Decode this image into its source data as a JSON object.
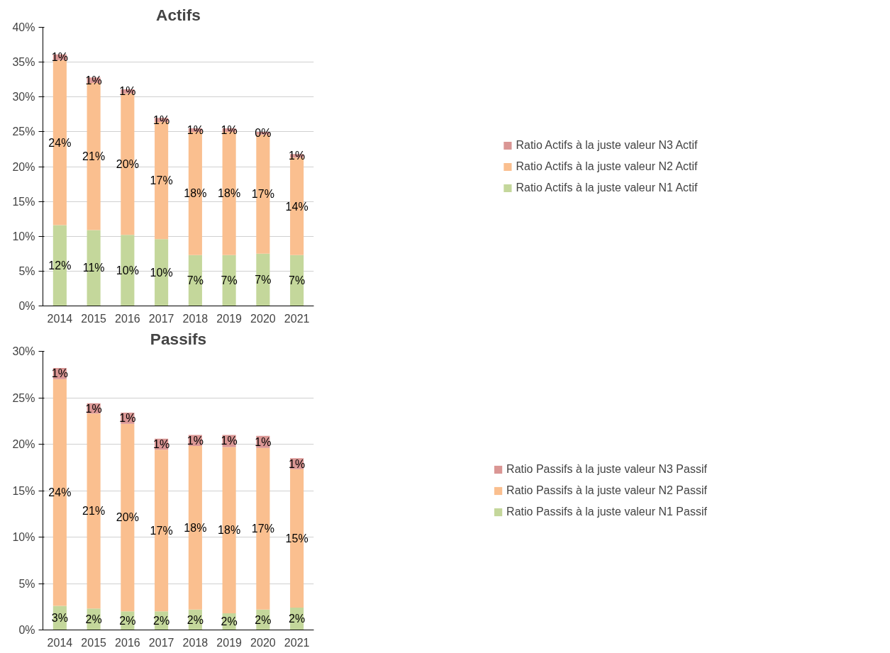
{
  "chart_data": [
    {
      "type": "bar",
      "title": "Actifs",
      "categories": [
        "2014",
        "2015",
        "2016",
        "2017",
        "2018",
        "2019",
        "2020",
        "2021"
      ],
      "stacked": true,
      "grid": "y",
      "legend": "right",
      "ylim": [
        0,
        40
      ],
      "yticks": [
        {
          "value": 0,
          "label": "0%"
        },
        {
          "value": 5,
          "label": "5%"
        },
        {
          "value": 10,
          "label": "10%"
        },
        {
          "value": 15,
          "label": "15%"
        },
        {
          "value": 20,
          "label": "20%"
        },
        {
          "value": 25,
          "label": "25%"
        },
        {
          "value": 30,
          "label": "30%"
        },
        {
          "value": 35,
          "label": "35%"
        },
        {
          "value": 40,
          "label": "40%"
        }
      ],
      "series": [
        {
          "name": "Ratio Actifs à la juste valeur N1 Actif",
          "color": "#c4d79b",
          "values": [
            11.6,
            10.9,
            10.2,
            9.6,
            7.3,
            7.3,
            7.5,
            7.3
          ],
          "value_labels": [
            "12%",
            "11%",
            "10%",
            "10%",
            "7%",
            "7%",
            "7%",
            "7%"
          ]
        },
        {
          "name": "Ratio Actifs à la juste valeur N2 Actif",
          "color": "#fabf8f",
          "values": [
            23.7,
            21.1,
            20.3,
            16.8,
            17.7,
            17.7,
            17.1,
            14.0
          ],
          "value_labels": [
            "24%",
            "21%",
            "20%",
            "17%",
            "18%",
            "18%",
            "17%",
            "14%"
          ]
        },
        {
          "name": "Ratio Actifs à la juste valeur N3 Actif",
          "color": "#da9694",
          "values": [
            0.8,
            0.8,
            0.6,
            0.6,
            0.5,
            0.5,
            0.4,
            0.5
          ],
          "value_labels": [
            "1%",
            "1%",
            "1%",
            "1%",
            "1%",
            "1%",
            "0%",
            "1%"
          ]
        }
      ]
    },
    {
      "type": "bar",
      "title": "Passifs",
      "categories": [
        "2014",
        "2015",
        "2016",
        "2017",
        "2018",
        "2019",
        "2020",
        "2021"
      ],
      "stacked": true,
      "grid": "y",
      "legend": "right",
      "ylim": [
        0,
        30
      ],
      "yticks": [
        {
          "value": 0,
          "label": "0%"
        },
        {
          "value": 5,
          "label": "5%"
        },
        {
          "value": 10,
          "label": "10%"
        },
        {
          "value": 15,
          "label": "15%"
        },
        {
          "value": 20,
          "label": "20%"
        },
        {
          "value": 25,
          "label": "25%"
        },
        {
          "value": 30,
          "label": "30%"
        }
      ],
      "series": [
        {
          "name": "Ratio Passifs à la juste valeur N1 Passif",
          "color": "#c4d79b",
          "values": [
            2.6,
            2.3,
            2.0,
            2.0,
            2.2,
            1.8,
            2.2,
            2.4
          ],
          "value_labels": [
            "3%",
            "2%",
            "2%",
            "2%",
            "2%",
            "2%",
            "2%",
            "2%"
          ]
        },
        {
          "name": "Ratio Passifs à la juste valeur N2 Passif",
          "color": "#fabf8f",
          "values": [
            24.4,
            21.0,
            20.2,
            17.4,
            17.6,
            17.9,
            17.4,
            14.9
          ],
          "value_labels": [
            "24%",
            "21%",
            "20%",
            "17%",
            "18%",
            "18%",
            "17%",
            "15%"
          ]
        },
        {
          "name": "Ratio Passifs à la juste valeur N3 Passif",
          "color": "#da9694",
          "values": [
            1.2,
            1.1,
            1.2,
            1.2,
            1.2,
            1.3,
            1.3,
            1.2
          ],
          "value_labels": [
            "1%",
            "1%",
            "1%",
            "1%",
            "1%",
            "1%",
            "1%",
            "1%"
          ]
        }
      ]
    }
  ]
}
